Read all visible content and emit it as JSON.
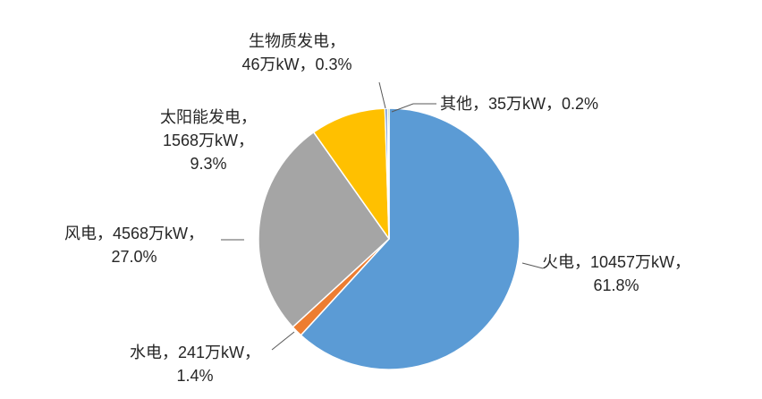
{
  "chart_data": {
    "type": "pie",
    "title": "",
    "legend": "none",
    "start_angle_deg": 0,
    "direction": "clockwise",
    "slices": [
      {
        "name": "火电",
        "value": 10457,
        "unit": "万kW",
        "percent": 61.8,
        "color": "#5B9BD5",
        "label_lines": [
          "火电，10457万kW，",
          "61.8%"
        ]
      },
      {
        "name": "水电",
        "value": 241,
        "unit": "万kW",
        "percent": 1.4,
        "color": "#ED7D31",
        "label_lines": [
          "水电，241万kW，",
          "1.4%"
        ]
      },
      {
        "name": "风电",
        "value": 4568,
        "unit": "万kW",
        "percent": 27.0,
        "color": "#A5A5A5",
        "label_lines": [
          "风电，4568万kW，",
          "27.0%"
        ]
      },
      {
        "name": "太阳能发电",
        "value": 1568,
        "unit": "万kW",
        "percent": 9.3,
        "color": "#FFC000",
        "label_lines": [
          "太阳能发电，",
          "1568万kW，",
          "9.3%"
        ]
      },
      {
        "name": "生物质发电",
        "value": 46,
        "unit": "万kW",
        "percent": 0.3,
        "color": "#4472C4",
        "label_lines": [
          "生物质发电，",
          "46万kW，0.3%"
        ]
      },
      {
        "name": "其他",
        "value": 35,
        "unit": "万kW",
        "percent": 0.2,
        "color": "#70AD47",
        "label_lines": [
          "其他，35万kW，0.2%"
        ]
      }
    ]
  }
}
